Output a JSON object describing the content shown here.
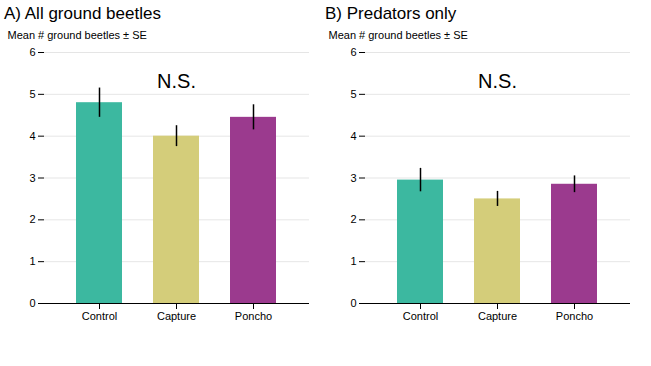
{
  "chart_data": [
    {
      "type": "bar",
      "title": "A) All ground beetles",
      "categories": [
        "Control",
        "Capture",
        "Poncho"
      ],
      "values": [
        4.8,
        4.0,
        4.45
      ],
      "errors": [
        0.35,
        0.25,
        0.3
      ],
      "colors": [
        "#3cb8a0",
        "#d4cd7a",
        "#9b3a8e"
      ],
      "ylabel": "Mean # ground beetles ± SE",
      "ylim": [
        0,
        6
      ],
      "yticks": [
        0,
        1,
        2,
        3,
        4,
        5,
        6
      ],
      "grid": true,
      "annotations": [
        {
          "text": "N.S.",
          "x": "Capture",
          "y": 5.3
        }
      ]
    },
    {
      "type": "bar",
      "title": "B) Predators only",
      "categories": [
        "Control",
        "Capture",
        "Poncho"
      ],
      "values": [
        2.95,
        2.5,
        2.85
      ],
      "errors": [
        0.28,
        0.18,
        0.2
      ],
      "colors": [
        "#3cb8a0",
        "#d4cd7a",
        "#9b3a8e"
      ],
      "ylabel": "Mean # ground beetles ± SE",
      "ylim": [
        0,
        6
      ],
      "yticks": [
        0,
        1,
        2,
        3,
        4,
        5,
        6
      ],
      "grid": true,
      "annotations": [
        {
          "text": "N.S.",
          "x": "Capture",
          "y": 5.3
        }
      ]
    }
  ]
}
